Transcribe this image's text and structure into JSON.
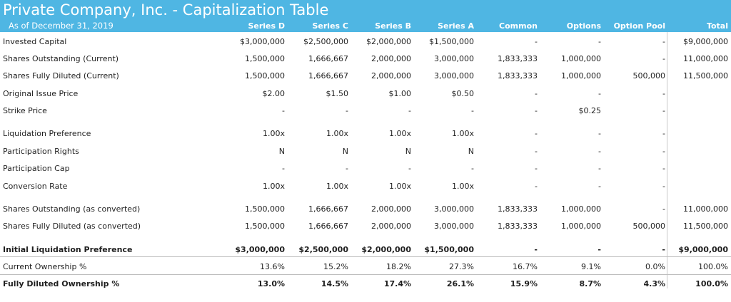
{
  "header": {
    "title": "Private Company, Inc. -  Capitalization Table",
    "subtitle": "As of December 31, 2019",
    "columns": [
      "Series D",
      "Series C",
      "Series B",
      "Series A",
      "Common",
      "Options",
      "Option Pool",
      "Total"
    ]
  },
  "rows": [
    {
      "label": "Invested Capital",
      "values": [
        "$3,000,000",
        "$2,500,000",
        "$2,000,000",
        "$1,500,000",
        "-",
        "-",
        "-",
        "$9,000,000"
      ]
    },
    {
      "label": "Shares Outstanding (Current)",
      "values": [
        "1,500,000",
        "1,666,667",
        "2,000,000",
        "3,000,000",
        "1,833,333",
        "1,000,000",
        "-",
        "11,000,000"
      ]
    },
    {
      "label": "Shares Fully Diluted (Current)",
      "values": [
        "1,500,000",
        "1,666,667",
        "2,000,000",
        "3,000,000",
        "1,833,333",
        "1,000,000",
        "500,000",
        "11,500,000"
      ]
    },
    {
      "label": "Original Issue Price",
      "values": [
        "$2.00",
        "$1.50",
        "$1.00",
        "$0.50",
        "-",
        "-",
        "-",
        ""
      ]
    },
    {
      "label": "Strike Price",
      "values": [
        "-",
        "-",
        "-",
        "-",
        "-",
        "$0.25",
        "-",
        ""
      ]
    },
    {
      "label": "Liquidation Preference",
      "values": [
        "1.00x",
        "1.00x",
        "1.00x",
        "1.00x",
        "-",
        "-",
        "-",
        ""
      ]
    },
    {
      "label": "Participation Rights",
      "values": [
        "N",
        "N",
        "N",
        "N",
        "-",
        "-",
        "-",
        ""
      ]
    },
    {
      "label": "Participation Cap",
      "values": [
        "-",
        "-",
        "-",
        "-",
        "-",
        "-",
        "-",
        ""
      ]
    },
    {
      "label": "Conversion Rate",
      "values": [
        "1.00x",
        "1.00x",
        "1.00x",
        "1.00x",
        "-",
        "-",
        "-",
        ""
      ]
    },
    {
      "label": "Shares Outstanding (as converted)",
      "values": [
        "1,500,000",
        "1,666,667",
        "2,000,000",
        "3,000,000",
        "1,833,333",
        "1,000,000",
        "-",
        "11,000,000"
      ]
    },
    {
      "label": "Shares Fully Diluted (as converted)",
      "values": [
        "1,500,000",
        "1,666,667",
        "2,000,000",
        "3,000,000",
        "1,833,333",
        "1,000,000",
        "500,000",
        "11,500,000"
      ]
    },
    {
      "label": "Initial Liquidation Preference",
      "values": [
        "$3,000,000",
        "$2,500,000",
        "$2,000,000",
        "$1,500,000",
        "-",
        "-",
        "-",
        "$9,000,000"
      ]
    },
    {
      "label": "Current Ownership %",
      "values": [
        "13.6%",
        "15.2%",
        "18.2%",
        "27.3%",
        "16.7%",
        "9.1%",
        "0.0%",
        "100.0%"
      ]
    },
    {
      "label": "Fully Diluted Ownership %",
      "values": [
        "13.0%",
        "14.5%",
        "17.4%",
        "26.1%",
        "15.9%",
        "8.7%",
        "4.3%",
        "100.0%"
      ]
    }
  ],
  "colors": {
    "header_bg": "#4fb6e3",
    "header_text": "#ffffff",
    "rule": "#bdbdbd"
  }
}
